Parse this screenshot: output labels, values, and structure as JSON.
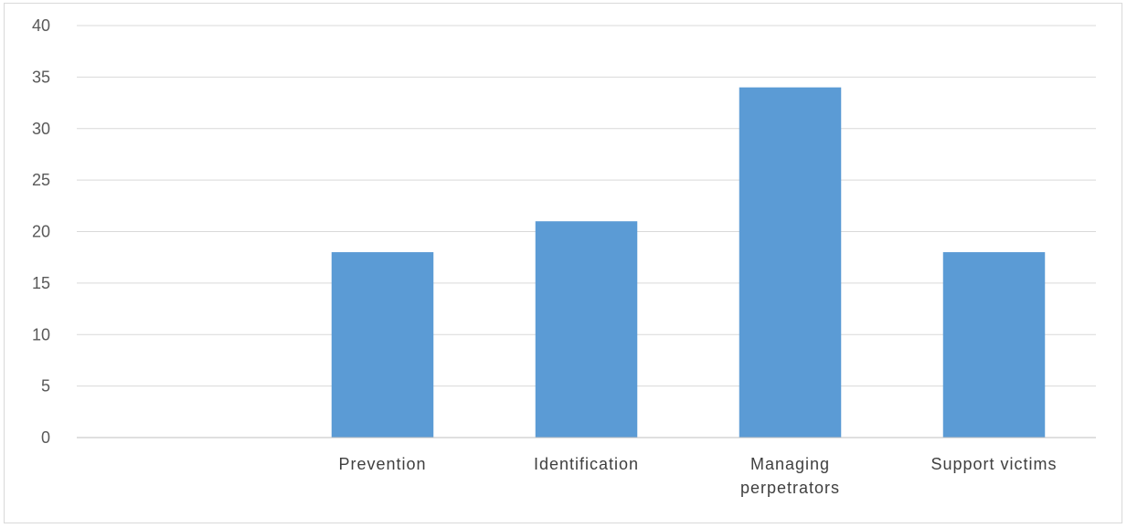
{
  "chart_data": {
    "type": "bar",
    "categories": [
      "",
      "Prevention",
      "Identification",
      "Managing perpetrators",
      "Support victims"
    ],
    "category_label_lines": [
      [
        ""
      ],
      [
        "Prevention"
      ],
      [
        "Identification"
      ],
      [
        "Managing",
        "perpetrators"
      ],
      [
        "Support victims"
      ]
    ],
    "values": [
      null,
      18,
      21,
      34,
      18
    ],
    "ylim": [
      0,
      40
    ],
    "yticks": [
      0,
      5,
      10,
      15,
      20,
      25,
      30,
      35,
      40
    ],
    "title": "",
    "xlabel": "",
    "ylabel": "",
    "grid": true,
    "legend": "none",
    "colors": {
      "bar": "#5b9bd5",
      "grid": "#d9d9d9",
      "axis": "#bfbfbf"
    }
  }
}
